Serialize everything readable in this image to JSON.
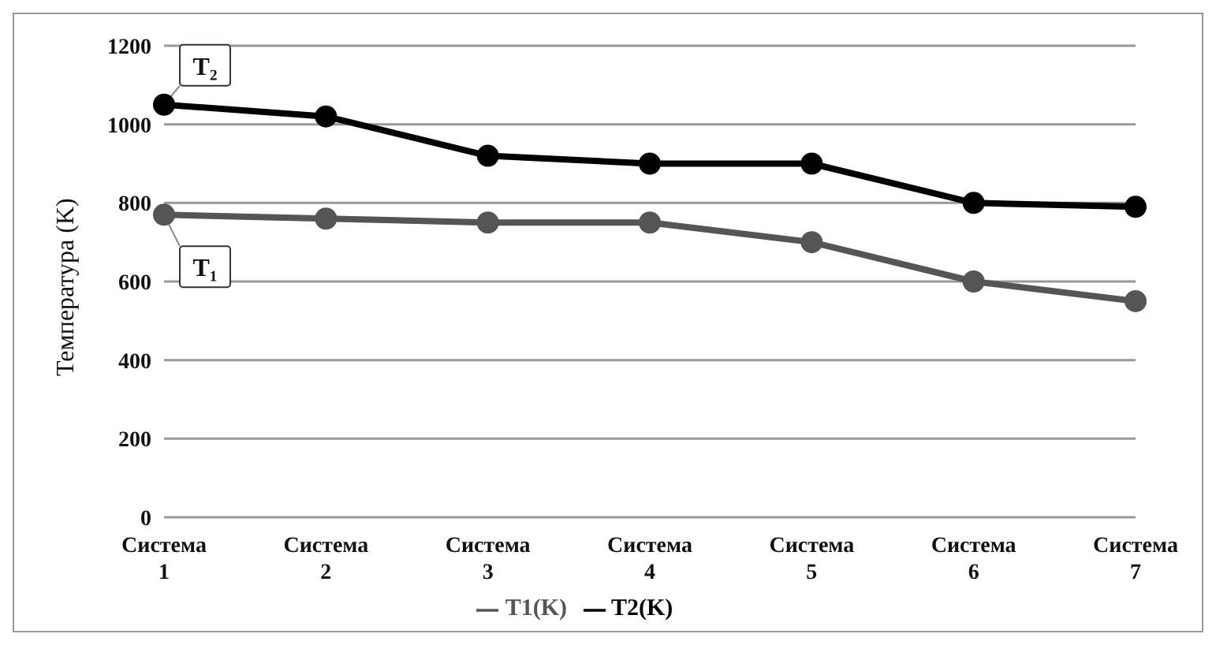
{
  "chart_data": {
    "type": "line",
    "ylabel": "Температура (K)",
    "categories": [
      "Система 1",
      "Система 2",
      "Система 3",
      "Система 4",
      "Система 5",
      "Система 6",
      "Система 7"
    ],
    "series": [
      {
        "name": "T1(K)",
        "color": "#555555",
        "values": [
          770,
          760,
          750,
          750,
          700,
          600,
          550
        ]
      },
      {
        "name": "T2(K)",
        "color": "#000000",
        "values": [
          1050,
          1020,
          920,
          900,
          900,
          800,
          790
        ]
      }
    ],
    "ylim": [
      0,
      1200
    ],
    "yticks": [
      0,
      200,
      400,
      600,
      800,
      1000,
      1200
    ],
    "grid": "y",
    "legend": "bottom",
    "marker": "circle",
    "annotations": [
      {
        "text": "T₂",
        "x": "Система 1",
        "y": 1050
      },
      {
        "text": "T₁",
        "x": "Система 1",
        "y": 770
      }
    ]
  }
}
